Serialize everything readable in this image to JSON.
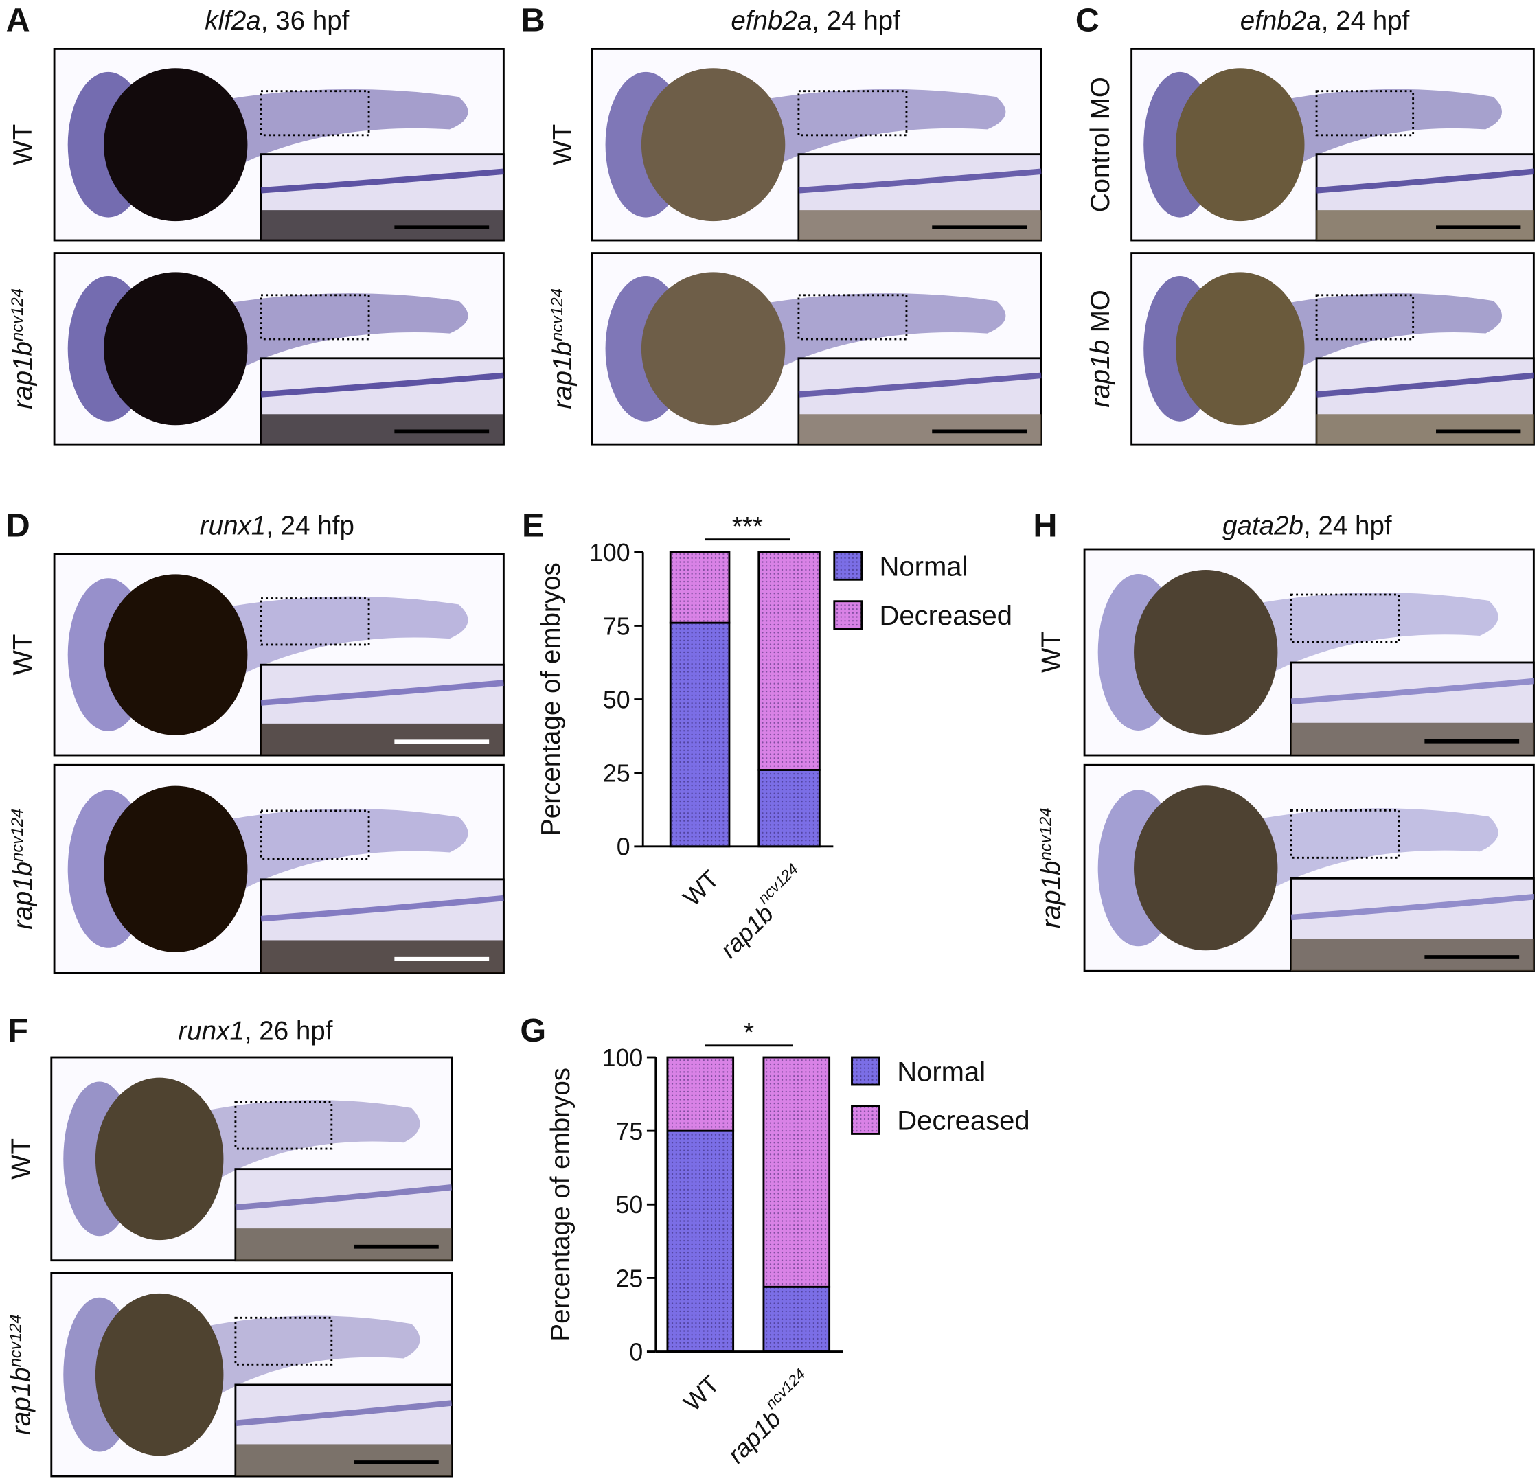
{
  "panels": [
    {
      "label": "A",
      "title": [
        {
          "text": "klf2a",
          "style": "i"
        },
        {
          "text": ", 36 hpf",
          "style": "n"
        }
      ],
      "rows": [
        [
          {
            "text": "WT",
            "style": "n"
          }
        ],
        [
          {
            "text": "rap1b",
            "style": "i"
          },
          {
            "text": "ncv124",
            "style": "sup"
          }
        ]
      ]
    },
    {
      "label": "B",
      "title": [
        {
          "text": "efnb2a",
          "style": "i"
        },
        {
          "text": ", 24 hpf",
          "style": "n"
        }
      ],
      "rows": [
        [
          {
            "text": "WT",
            "style": "n"
          }
        ],
        [
          {
            "text": "rap1b",
            "style": "i"
          },
          {
            "text": "ncv124",
            "style": "sup"
          }
        ]
      ]
    },
    {
      "label": "C",
      "title": [
        {
          "text": "efnb2a",
          "style": "i"
        },
        {
          "text": ", 24 hpf",
          "style": "n"
        }
      ],
      "rows": [
        [
          {
            "text": "Control MO",
            "style": "n"
          }
        ],
        [
          {
            "text": "rap1b",
            "style": "i"
          },
          {
            "text": " MO",
            "style": "n"
          }
        ]
      ]
    },
    {
      "label": "D",
      "title": [
        {
          "text": "runx1",
          "style": "i"
        },
        {
          "text": ", 24 hfp",
          "style": "n"
        }
      ],
      "rows": [
        [
          {
            "text": "WT",
            "style": "n"
          }
        ],
        [
          {
            "text": "rap1b",
            "style": "i"
          },
          {
            "text": "ncv124",
            "style": "sup"
          }
        ]
      ]
    },
    {
      "label": "H",
      "title": [
        {
          "text": "gata2b",
          "style": "i"
        },
        {
          "text": ", 24 hpf",
          "style": "n"
        }
      ],
      "rows": [
        [
          {
            "text": "WT",
            "style": "n"
          }
        ],
        [
          {
            "text": "rap1b",
            "style": "i"
          },
          {
            "text": "ncv124",
            "style": "sup"
          }
        ]
      ]
    },
    {
      "label": "F",
      "title": [
        {
          "text": "runx1",
          "style": "i"
        },
        {
          "text": ", 26 hpf",
          "style": "n"
        }
      ],
      "rows": [
        [
          {
            "text": "WT",
            "style": "n"
          }
        ],
        [
          {
            "text": "rap1b",
            "style": "i"
          },
          {
            "text": "ncv124",
            "style": "sup"
          }
        ]
      ]
    }
  ],
  "chart_data": [
    {
      "type": "bar",
      "stacked": true,
      "panel_label": "E",
      "significance": "***",
      "y_label": "Percentage of embryos",
      "categories": [
        [
          {
            "text": "WT",
            "style": "n"
          }
        ],
        [
          {
            "text": "rap1b",
            "style": "i"
          },
          {
            "text": "ncv124",
            "style": "sup"
          }
        ]
      ],
      "series": [
        {
          "name": "Normal",
          "color": "#7b6ee6",
          "values": [
            76,
            26
          ]
        },
        {
          "name": "Decreased",
          "color": "#d982e6",
          "values": [
            24,
            74
          ]
        }
      ],
      "ylim": [
        0,
        100
      ],
      "yticks": [
        0,
        25,
        50,
        75,
        100
      ]
    },
    {
      "type": "bar",
      "stacked": true,
      "panel_label": "G",
      "significance": "*",
      "y_label": "Percentage of embryos",
      "categories": [
        [
          {
            "text": "WT",
            "style": "n"
          }
        ],
        [
          {
            "text": "rap1b",
            "style": "i"
          },
          {
            "text": "ncv124",
            "style": "sup"
          }
        ]
      ],
      "series": [
        {
          "name": "Normal",
          "color": "#7b6ee6",
          "values": [
            75,
            22
          ]
        },
        {
          "name": "Decreased",
          "color": "#d982e6",
          "values": [
            25,
            78
          ]
        }
      ],
      "ylim": [
        0,
        100
      ],
      "yticks": [
        0,
        25,
        50,
        75,
        100
      ]
    }
  ]
}
